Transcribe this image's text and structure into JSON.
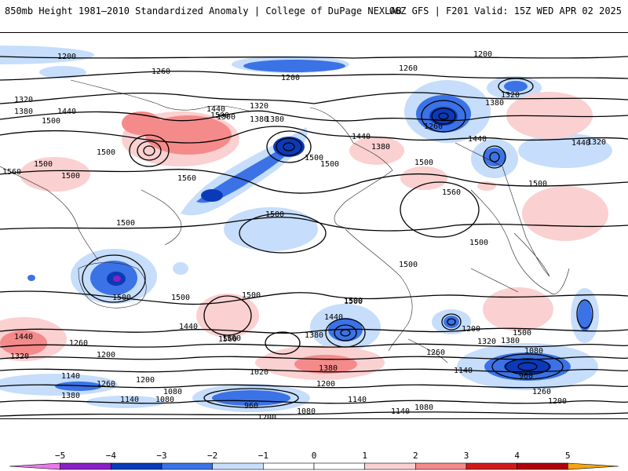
{
  "header": {
    "left": "850mb Height 1981–2010 Standardized Anomaly | College of DuPage NEXLAB",
    "right": "06Z GFS | F201 Valid: 15Z WED APR 02 2025"
  },
  "colors": {
    "-5": "#e879e8",
    "-4": "#8a1fc4",
    "-3": "#0b3ab8",
    "-2": "#3b72e6",
    "-1": "#c6ddfb",
    "1": "#fbd0d0",
    "2": "#f58a8a",
    "3": "#cf1a1a",
    "4": "#b0000e",
    "5": "#f5a511"
  },
  "colorbar": {
    "ticks": [
      "−5",
      "−4",
      "−3",
      "−2",
      "−1",
      "0",
      "1",
      "2",
      "3",
      "4",
      "5"
    ],
    "segments": [
      {
        "color": "#e879e8"
      },
      {
        "color": "#8a1fc4"
      },
      {
        "color": "#0b3ab8"
      },
      {
        "color": "#3b72e6"
      },
      {
        "color": "#c6ddfb"
      },
      {
        "color": "#ffffff"
      },
      {
        "color": "#ffffff"
      },
      {
        "color": "#fbd0d0"
      },
      {
        "color": "#f58a8a"
      },
      {
        "color": "#cf1a1a"
      },
      {
        "color": "#b0000e"
      },
      {
        "color": "#f5a511"
      }
    ]
  },
  "contour_labels": [
    "1200",
    "1260",
    "1200",
    "1260",
    "1200",
    "1320",
    "1380",
    "1440",
    "1500",
    "1500",
    "1320",
    "1380",
    "1440",
    "1500",
    "1380",
    "1260",
    "1320",
    "1380",
    "1440",
    "1560",
    "1500",
    "1500",
    "1500",
    "1560",
    "1500",
    "1500",
    "1500",
    "1500",
    "1560",
    "1440",
    "1500",
    "1500",
    "1500",
    "1500",
    "1440",
    "1500",
    "1380",
    "1560",
    "1440",
    "1320",
    "1260",
    "1200",
    "1140",
    "1380",
    "1320",
    "1380",
    "1260",
    "1200",
    "1140",
    "1080",
    "960",
    "1260",
    "1200",
    "1080",
    "1140",
    "1080",
    "1200",
    "1080",
    "960",
    "1140",
    "1080",
    "1020",
    "1200",
    "1140",
    "1380",
    "1440",
    "1500",
    "1560",
    "1500",
    "1500",
    "1500",
    "1500",
    "1440",
    "1380",
    "1320",
    "1260",
    "1200"
  ]
}
